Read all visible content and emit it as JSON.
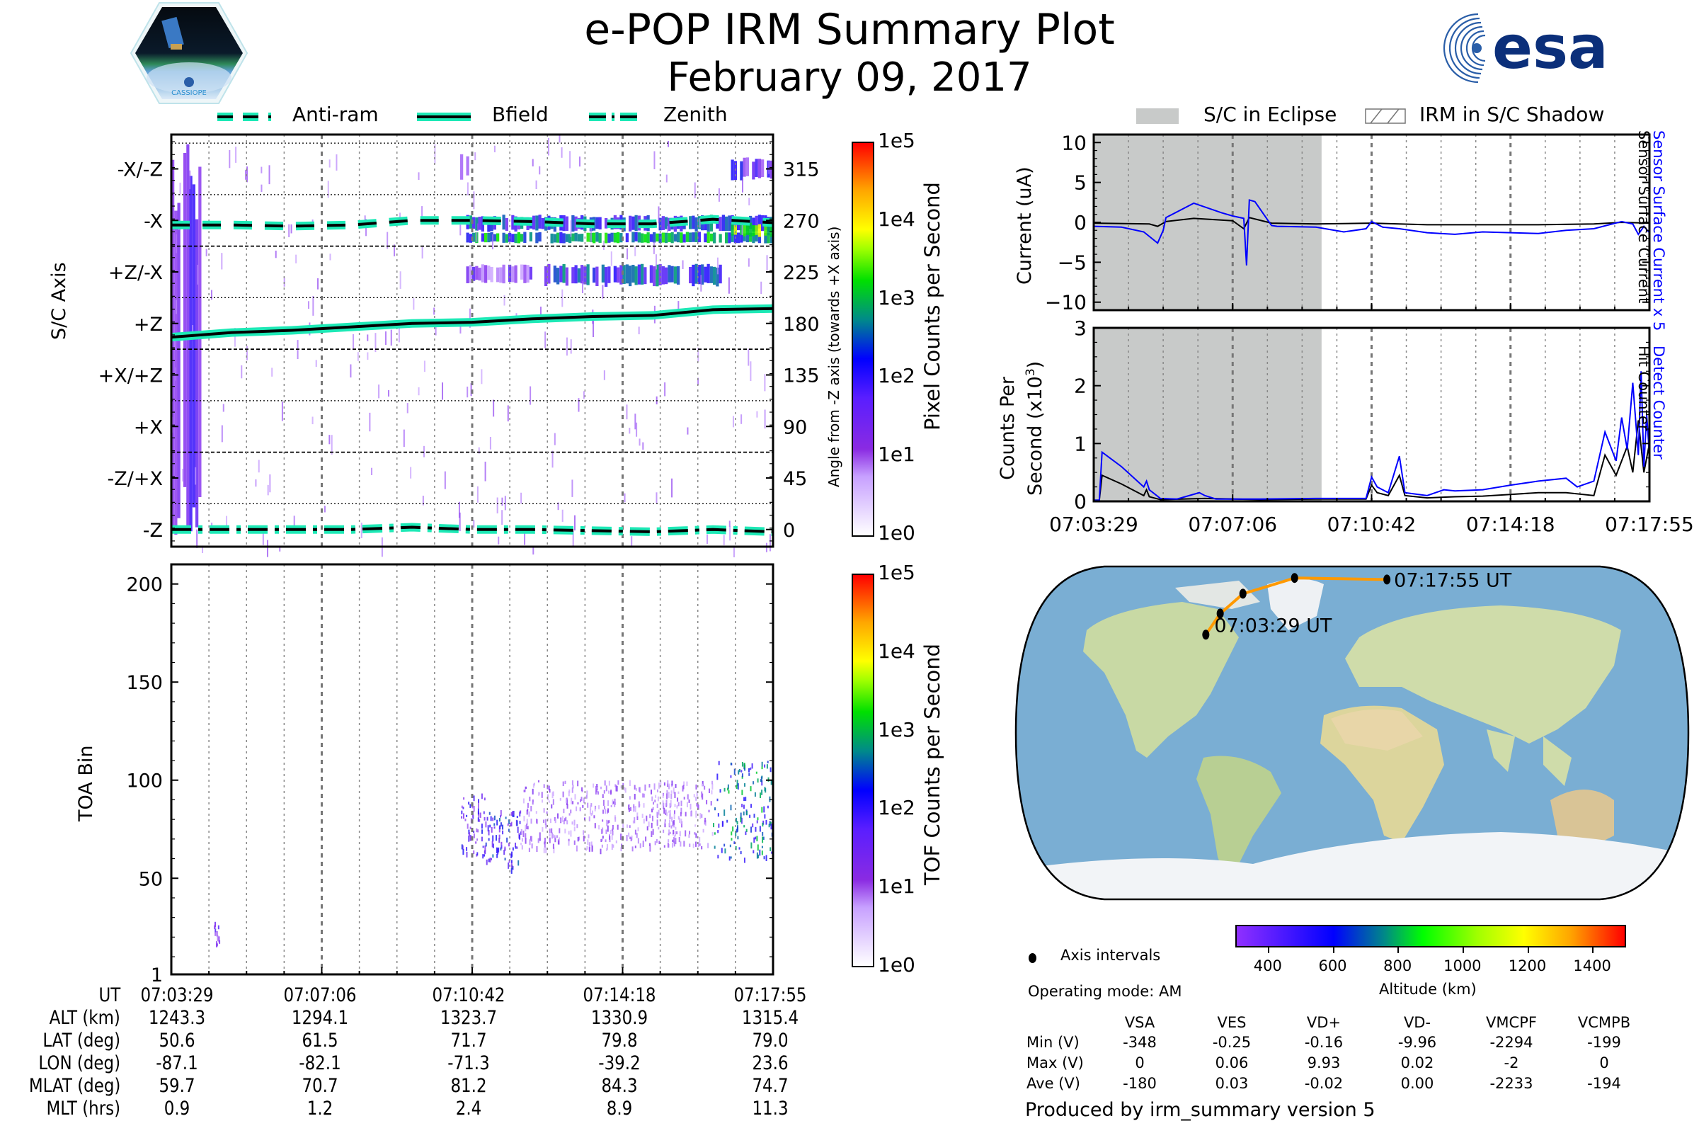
{
  "header": {
    "title": "e-POP IRM Summary Plot",
    "date": "February 09, 2017",
    "left_logo": "cassiope-mission-logo",
    "left_logo_text": "CASSIOPE",
    "right_logo": "esa-logo",
    "right_logo_text": "esa"
  },
  "legend_left": [
    {
      "label": "Anti-ram",
      "style": "dashed"
    },
    {
      "label": "Bfield",
      "style": "solid"
    },
    {
      "label": "Zenith",
      "style": "dashdot"
    }
  ],
  "legend_right": [
    {
      "label": "S/C in Eclipse",
      "style": "gray-fill"
    },
    {
      "label": "IRM in S/C Shadow",
      "style": "hatched"
    }
  ],
  "colors": {
    "line_halo": "#1de9b6",
    "eclipse_fill": "#c8cac9",
    "blue_series": "#0000ff",
    "black_series": "#000000",
    "orbit_track": "#ff9900"
  },
  "chart_data": [
    {
      "id": "sc-axis-spectrogram",
      "type": "heatmap",
      "title": "",
      "ylabel": "S/C Axis",
      "ylabel_right": "Angle from -Z axis (towards +X axis)",
      "y_tick_labels_left": [
        "-X/-Z",
        "-X",
        "+Z/-X",
        "+Z",
        "+X/+Z",
        "+X",
        "-Z/+X",
        "-Z"
      ],
      "y_tick_labels_right": [
        "315",
        "270",
        "225",
        "180",
        "135",
        "90",
        "45",
        "0"
      ],
      "ylim": [
        -15,
        345
      ],
      "colorbar": {
        "label": "Pixel Counts per Second",
        "ticks": [
          "1e0",
          "1e1",
          "1e2",
          "1e3",
          "1e4",
          "1e5"
        ],
        "scale": "log"
      },
      "lines": [
        {
          "name": "Anti-ram",
          "style": "dashed",
          "x": [
            0,
            0.1,
            0.2,
            0.3,
            0.4,
            0.5,
            0.6,
            0.7,
            0.8,
            0.9,
            1.0
          ],
          "y": [
            266,
            266,
            265,
            266,
            270,
            270,
            269,
            267,
            267,
            271,
            268
          ]
        },
        {
          "name": "Bfield",
          "style": "solid",
          "x": [
            0,
            0.1,
            0.2,
            0.3,
            0.4,
            0.5,
            0.6,
            0.7,
            0.8,
            0.9,
            1.0
          ],
          "y": [
            168,
            172,
            174,
            177,
            180,
            181,
            184,
            186,
            187,
            192,
            193
          ]
        },
        {
          "name": "Zenith",
          "style": "dashdot",
          "x": [
            0,
            0.1,
            0.2,
            0.3,
            0.4,
            0.5,
            0.6,
            0.7,
            0.8,
            0.9,
            1.0
          ],
          "y": [
            0,
            0,
            0,
            0,
            2,
            0,
            0,
            -1,
            -2,
            0,
            -2
          ]
        }
      ],
      "blobs": [
        {
          "x0": 0.0,
          "x1": 0.05,
          "y0": -10,
          "y1": 340,
          "level": 0.3
        },
        {
          "x0": 0.49,
          "x1": 1.0,
          "y0": 250,
          "y1": 260,
          "level": 0.55
        },
        {
          "x0": 0.49,
          "x1": 1.0,
          "y0": 260,
          "y1": 275,
          "level": 0.45
        },
        {
          "x0": 0.93,
          "x1": 1.0,
          "y0": 255,
          "y1": 268,
          "level": 0.7
        },
        {
          "x0": 0.62,
          "x1": 0.92,
          "y0": 212,
          "y1": 232,
          "level": 0.45
        },
        {
          "x0": 0.49,
          "x1": 0.6,
          "y0": 215,
          "y1": 232,
          "level": 0.25
        },
        {
          "x0": 0.93,
          "x1": 1.0,
          "y0": 305,
          "y1": 325,
          "level": 0.35
        },
        {
          "x0": 0.48,
          "x1": 0.5,
          "y0": 305,
          "y1": 330,
          "level": 0.25
        }
      ]
    },
    {
      "id": "toa-spectrogram",
      "type": "heatmap",
      "ylabel": "TOA Bin",
      "y_ticks": [
        1,
        50,
        100,
        150,
        200
      ],
      "ylim": [
        1,
        210
      ],
      "colorbar": {
        "label": "TOF Counts per Second",
        "ticks": [
          "1e0",
          "1e1",
          "1e2",
          "1e3",
          "1e4",
          "1e5"
        ],
        "scale": "log"
      },
      "blobs": [
        {
          "x0": 0.48,
          "x1": 0.52,
          "y0": 62,
          "y1": 95,
          "level": 0.35
        },
        {
          "x0": 0.52,
          "x1": 0.58,
          "y0": 55,
          "y1": 85,
          "level": 0.4
        },
        {
          "x0": 0.58,
          "x1": 0.9,
          "y0": 65,
          "y1": 100,
          "level": 0.2
        },
        {
          "x0": 0.9,
          "x1": 1.0,
          "y0": 60,
          "y1": 110,
          "level": 0.5
        },
        {
          "x0": 0.07,
          "x1": 0.08,
          "y0": 15,
          "y1": 28,
          "level": 0.3
        }
      ]
    },
    {
      "id": "current-plot",
      "type": "line",
      "ylabel": "Current (uA)",
      "ylim": [
        -11,
        11
      ],
      "y_ticks": [
        -10,
        -5,
        0,
        5,
        10
      ],
      "right_labels": [
        {
          "text": "Sensor Surface Current x 5",
          "color": "#0000ff"
        },
        {
          "text": "Sensor Surface Current",
          "color": "#000000"
        }
      ],
      "eclipse_x": [
        0,
        0.41
      ],
      "series": [
        {
          "name": "Sensor Surface Current x 5",
          "color": "#0000ff",
          "x": [
            0,
            0.05,
            0.09,
            0.115,
            0.125,
            0.13,
            0.18,
            0.23,
            0.25,
            0.27,
            0.275,
            0.28,
            0.29,
            0.32,
            0.33,
            0.4,
            0.45,
            0.49,
            0.5,
            0.52,
            0.55,
            0.6,
            0.65,
            0.7,
            0.75,
            0.8,
            0.85,
            0.9,
            0.95,
            0.97,
            0.98,
            0.99,
            1.0
          ],
          "y": [
            -0.5,
            -0.6,
            -1.2,
            -2.6,
            -1.0,
            0.6,
            2.4,
            1.2,
            0.8,
            0.5,
            -5.4,
            2.8,
            2.6,
            -0.4,
            -0.5,
            -0.6,
            -1.2,
            -0.8,
            0.1,
            -0.6,
            -0.8,
            -1.3,
            -1.5,
            -1.2,
            -1.3,
            -1.4,
            -1.0,
            -0.8,
            0.1,
            -0.2,
            -1.5,
            -0.5,
            -1.3
          ]
        },
        {
          "name": "Sensor Surface Current",
          "color": "#000000",
          "x": [
            0,
            0.1,
            0.115,
            0.13,
            0.18,
            0.25,
            0.27,
            0.28,
            0.32,
            0.4,
            0.5,
            0.6,
            0.7,
            0.8,
            0.9,
            0.95,
            1.0
          ],
          "y": [
            -0.1,
            -0.2,
            -0.5,
            0.1,
            0.5,
            0.2,
            -0.8,
            0.6,
            -0.1,
            -0.2,
            -0.1,
            -0.3,
            -0.3,
            -0.3,
            -0.2,
            0.0,
            -0.1
          ]
        }
      ]
    },
    {
      "id": "counts-plot",
      "type": "line",
      "ylabel": "Counts Per Second (x10^3)",
      "ylabel_line1": "Counts Per",
      "ylabel_line2": "Second (x10",
      "ylabel_sup": "3",
      "ylim": [
        0,
        3
      ],
      "y_ticks": [
        0,
        1,
        2,
        3
      ],
      "x_tick_labels": [
        "07:03:29",
        "07:07:06",
        "07:10:42",
        "07:14:18",
        "07:17:55"
      ],
      "right_labels": [
        {
          "text": "Detect Counter",
          "color": "#0000ff"
        },
        {
          "text": "Hit Counter",
          "color": "#000000"
        }
      ],
      "eclipse_x": [
        0,
        0.41
      ],
      "series": [
        {
          "name": "Detect Counter",
          "color": "#0000ff",
          "x": [
            0,
            0.01,
            0.015,
            0.05,
            0.09,
            0.095,
            0.1,
            0.12,
            0.15,
            0.19,
            0.2,
            0.22,
            0.25,
            0.3,
            0.4,
            0.49,
            0.5,
            0.51,
            0.53,
            0.55,
            0.56,
            0.6,
            0.63,
            0.65,
            0.7,
            0.75,
            0.8,
            0.85,
            0.87,
            0.9,
            0.92,
            0.94,
            0.95,
            0.96,
            0.97,
            0.98,
            0.985,
            0.99,
            0.995,
            1.0
          ],
          "y": [
            0.02,
            0.02,
            0.85,
            0.6,
            0.25,
            0.35,
            0.2,
            0.05,
            0.04,
            0.15,
            0.1,
            0.04,
            0.04,
            0.04,
            0.05,
            0.05,
            0.42,
            0.25,
            0.15,
            0.78,
            0.15,
            0.1,
            0.2,
            0.18,
            0.2,
            0.28,
            0.35,
            0.4,
            0.25,
            0.35,
            1.2,
            0.7,
            1.45,
            0.9,
            2.05,
            0.8,
            2.25,
            0.6,
            1.5,
            0.8
          ]
        },
        {
          "name": "Hit Counter",
          "color": "#000000",
          "x": [
            0,
            0.01,
            0.015,
            0.05,
            0.09,
            0.095,
            0.1,
            0.12,
            0.2,
            0.3,
            0.4,
            0.49,
            0.5,
            0.51,
            0.53,
            0.55,
            0.56,
            0.6,
            0.65,
            0.7,
            0.75,
            0.8,
            0.85,
            0.9,
            0.92,
            0.94,
            0.96,
            0.97,
            0.98,
            0.99,
            1.0
          ],
          "y": [
            0.02,
            0.02,
            0.45,
            0.3,
            0.1,
            0.2,
            0.08,
            0.03,
            0.05,
            0.03,
            0.04,
            0.04,
            0.28,
            0.15,
            0.1,
            0.45,
            0.1,
            0.06,
            0.08,
            0.09,
            0.12,
            0.15,
            0.15,
            0.1,
            0.8,
            0.45,
            0.95,
            0.5,
            1.4,
            0.5,
            1.0
          ]
        }
      ]
    }
  ],
  "time_axis": {
    "labels": [
      "07:03:29",
      "07:07:06",
      "07:10:42",
      "07:14:18",
      "07:17:55"
    ]
  },
  "ephemeris_table": {
    "rows": [
      {
        "label": "UT",
        "values": [
          "07:03:29",
          "07:07:06",
          "07:10:42",
          "07:14:18",
          "07:17:55"
        ]
      },
      {
        "label": "ALT (km)",
        "values": [
          "1243.3",
          "1294.1",
          "1323.7",
          "1330.9",
          "1315.4"
        ]
      },
      {
        "label": "LAT (deg)",
        "values": [
          "50.6",
          "61.5",
          "71.7",
          "79.8",
          "79.0"
        ]
      },
      {
        "label": "LON (deg)",
        "values": [
          "-87.1",
          "-82.1",
          "-71.3",
          "-39.2",
          "23.6"
        ]
      },
      {
        "label": "MLAT (deg)",
        "values": [
          "59.7",
          "70.7",
          "81.2",
          "84.3",
          "74.7"
        ]
      },
      {
        "label": "MLT (hrs)",
        "values": [
          "0.9",
          "1.2",
          "2.4",
          "8.9",
          "11.3"
        ]
      }
    ]
  },
  "map": {
    "start_label": "07:03:29 UT",
    "end_label": "07:17:55 UT",
    "track": [
      {
        "lat": 50.6,
        "lon": -87.1
      },
      {
        "lat": 61.5,
        "lon": -82.1
      },
      {
        "lat": 71.7,
        "lon": -71.3
      },
      {
        "lat": 79.8,
        "lon": -39.2
      },
      {
        "lat": 79.0,
        "lon": 23.6
      }
    ]
  },
  "altitude_colorbar": {
    "label": "Altitude (km)",
    "ticks": [
      "400",
      "600",
      "800",
      "1000",
      "1200",
      "1400"
    ]
  },
  "info": {
    "axis_intervals_label": "Axis intervals",
    "operating_mode": "Operating mode: AM",
    "produced_by": "Produced by irm_summary version 5"
  },
  "voltage_table": {
    "headers": [
      "",
      "VSA",
      "VES",
      "VD+",
      "VD-",
      "VMCPF",
      "VCMPB"
    ],
    "rows": [
      {
        "label": "Min (V)",
        "values": [
          "-348",
          "-0.25",
          "-0.16",
          "-9.96",
          "-2294",
          "-199"
        ]
      },
      {
        "label": "Max (V)",
        "values": [
          "0",
          "0.06",
          "9.93",
          "0.02",
          "-2",
          "0"
        ]
      },
      {
        "label": "Ave (V)",
        "values": [
          "-180",
          "0.03",
          "-0.02",
          "0.00",
          "-2233",
          "-194"
        ]
      }
    ]
  }
}
